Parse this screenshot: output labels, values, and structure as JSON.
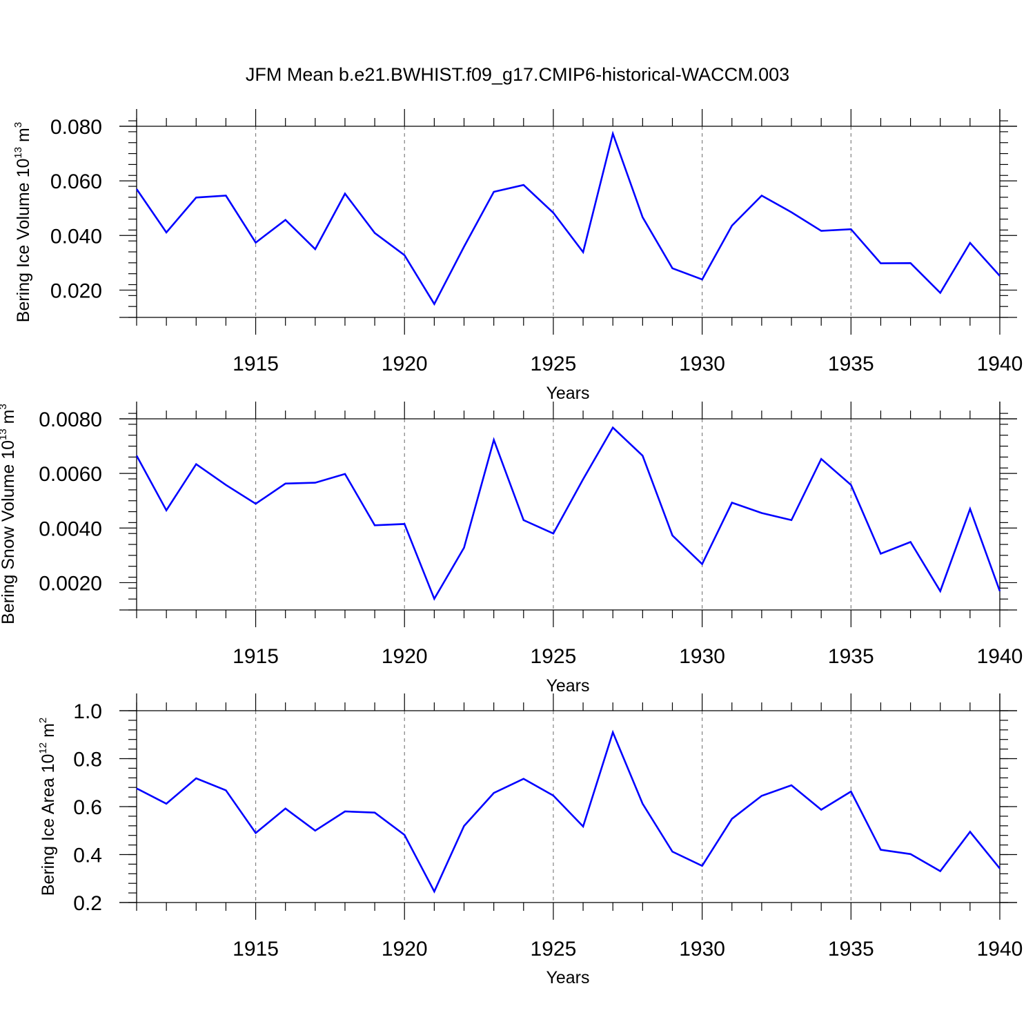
{
  "figure": {
    "title": "JFM Mean b.e21.BWHIST.f09_g17.CMIP6-historical-WACCM.003",
    "line_color": "#0000ff",
    "grid_color": "#808080"
  },
  "chart_data": [
    {
      "type": "line",
      "xlabel": "Years",
      "ylabel": {
        "main": "Bering Ice Volume 10",
        "exp": "13",
        "unit": " m",
        "unit_exp": "3"
      },
      "xlim": [
        1911,
        1940
      ],
      "ylim": [
        0.01,
        0.08
      ],
      "yticks": [
        0.02,
        0.04,
        0.06,
        0.08
      ],
      "ytick_labels": [
        "0.020",
        "0.040",
        "0.060",
        "0.080"
      ],
      "xticks": [
        1915,
        1920,
        1925,
        1930,
        1935,
        1940
      ],
      "xtick_labels": [
        "1915",
        "1920",
        "1925",
        "1930",
        "1935",
        "1940"
      ],
      "x": [
        1911,
        1912,
        1913,
        1914,
        1915,
        1916,
        1917,
        1918,
        1919,
        1920,
        1921,
        1922,
        1923,
        1924,
        1925,
        1926,
        1927,
        1928,
        1929,
        1930,
        1931,
        1932,
        1933,
        1934,
        1935,
        1936,
        1937,
        1938,
        1939,
        1940
      ],
      "series": [
        {
          "values": [
            0.057,
            0.0411,
            0.0539,
            0.0546,
            0.0374,
            0.0457,
            0.035,
            0.0553,
            0.0409,
            0.0328,
            0.0149,
            0.0359,
            0.056,
            0.0585,
            0.0483,
            0.0339,
            0.0773,
            0.0467,
            0.028,
            0.0239,
            0.0436,
            0.0546,
            0.0485,
            0.0417,
            0.0423,
            0.0298,
            0.0299,
            0.019,
            0.0373,
            0.0252
          ]
        }
      ]
    },
    {
      "type": "line",
      "xlabel": "Years",
      "ylabel": {
        "main": "Bering Snow Volume 10",
        "exp": "13",
        "unit": " m",
        "unit_exp": "3"
      },
      "xlim": [
        1911,
        1940
      ],
      "ylim": [
        0.001,
        0.008
      ],
      "yticks": [
        0.002,
        0.004,
        0.006,
        0.008
      ],
      "ytick_labels": [
        "0.0020",
        "0.0040",
        "0.0060",
        "0.0080"
      ],
      "xticks": [
        1915,
        1920,
        1925,
        1930,
        1935,
        1940
      ],
      "xtick_labels": [
        "1915",
        "1920",
        "1925",
        "1930",
        "1935",
        "1940"
      ],
      "x": [
        1911,
        1912,
        1913,
        1914,
        1915,
        1916,
        1917,
        1918,
        1919,
        1920,
        1921,
        1922,
        1923,
        1924,
        1925,
        1926,
        1927,
        1928,
        1929,
        1930,
        1931,
        1932,
        1933,
        1934,
        1935,
        1936,
        1937,
        1938,
        1939,
        1940
      ],
      "series": [
        {
          "values": [
            0.00665,
            0.00465,
            0.00634,
            0.00558,
            0.00489,
            0.00563,
            0.00566,
            0.00598,
            0.0041,
            0.00415,
            0.00141,
            0.00328,
            0.00723,
            0.00429,
            0.0038,
            0.00579,
            0.00768,
            0.00665,
            0.00373,
            0.00268,
            0.00493,
            0.00455,
            0.00429,
            0.00653,
            0.00558,
            0.00306,
            0.00349,
            0.00169,
            0.0047,
            0.00169
          ]
        }
      ]
    },
    {
      "type": "line",
      "xlabel": "Years",
      "ylabel": {
        "main": "Bering Ice Area 10",
        "exp": "12",
        "unit": " m",
        "unit_exp": "2"
      },
      "xlim": [
        1911,
        1940
      ],
      "ylim": [
        0.2,
        1.0
      ],
      "yticks": [
        0.2,
        0.4,
        0.6,
        0.8,
        1.0
      ],
      "ytick_labels": [
        "0.2",
        "0.4",
        "0.6",
        "0.8",
        "1.0"
      ],
      "xticks": [
        1915,
        1920,
        1925,
        1930,
        1935,
        1940
      ],
      "xtick_labels": [
        "1915",
        "1920",
        "1925",
        "1930",
        "1935",
        "1940"
      ],
      "x": [
        1911,
        1912,
        1913,
        1914,
        1915,
        1916,
        1917,
        1918,
        1919,
        1920,
        1921,
        1922,
        1923,
        1924,
        1925,
        1926,
        1927,
        1928,
        1929,
        1930,
        1931,
        1932,
        1933,
        1934,
        1935,
        1936,
        1937,
        1938,
        1939,
        1940
      ],
      "series": [
        {
          "values": [
            0.676,
            0.612,
            0.718,
            0.668,
            0.49,
            0.592,
            0.5,
            0.58,
            0.575,
            0.482,
            0.246,
            0.519,
            0.657,
            0.716,
            0.646,
            0.517,
            0.91,
            0.612,
            0.412,
            0.353,
            0.549,
            0.645,
            0.689,
            0.587,
            0.663,
            0.42,
            0.402,
            0.331,
            0.495,
            0.342
          ]
        }
      ]
    }
  ]
}
